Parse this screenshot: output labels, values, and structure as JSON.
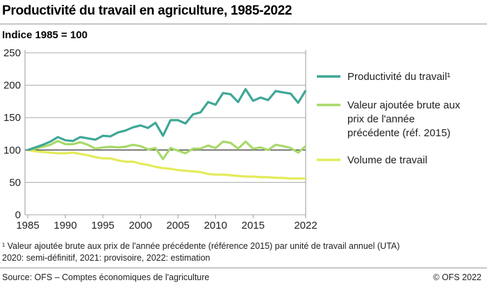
{
  "title": "Productivité du travail en agriculture, 1985-2022",
  "subtitle": "Indice 1985 = 100",
  "footnote1": "¹  Valeur ajoutée brute aux prix de l'année précédente (référence 2015) par unité de travail annuel (UTA)",
  "footnote2": "2020: semi-définitif, 2021: provisoire, 2022: estimation",
  "source": "Source: OFS – Comptes économiques de l'agriculture",
  "copyright": "© OFS 2022",
  "chart_data": {
    "type": "line",
    "title": "Productivité du travail en agriculture, 1985-2022",
    "ylabel": "Indice 1985 = 100",
    "ylim": [
      0,
      250
    ],
    "yticks": [
      0,
      50,
      100,
      150,
      200,
      250
    ],
    "xlim": [
      1985,
      2022
    ],
    "xticks": [
      1985,
      1990,
      1995,
      2000,
      2005,
      2010,
      2015,
      2022
    ],
    "grid": "horizontal",
    "legend_placement": "right",
    "x": [
      1985,
      1986,
      1987,
      1988,
      1989,
      1990,
      1991,
      1992,
      1993,
      1994,
      1995,
      1996,
      1997,
      1998,
      1999,
      2000,
      2001,
      2002,
      2003,
      2004,
      2005,
      2006,
      2007,
      2008,
      2009,
      2010,
      2011,
      2012,
      2013,
      2014,
      2015,
      2016,
      2017,
      2018,
      2019,
      2020,
      2021,
      2022
    ],
    "series": [
      {
        "name": "Productivité du travail¹",
        "legend_lines": [
          "Productivité du travail¹"
        ],
        "color": "#3fa796",
        "values": [
          100,
          104,
          108,
          113,
          120,
          115,
          114,
          120,
          118,
          116,
          122,
          121,
          127,
          130,
          135,
          138,
          134,
          142,
          122,
          146,
          146,
          141,
          155,
          158,
          174,
          170,
          188,
          186,
          174,
          194,
          176,
          181,
          177,
          191,
          189,
          187,
          173,
          192
        ]
      },
      {
        "name": "Valeur ajoutée brute aux prix de l'année précédente (réf. 2015)",
        "legend_lines": [
          "Valeur ajoutée brute aux",
          "prix de l'année",
          "précédente (réf. 2015)"
        ],
        "color": "#a8d96a",
        "values": [
          100,
          102,
          105,
          108,
          114,
          109,
          109,
          112,
          108,
          102,
          104,
          105,
          104,
          105,
          108,
          106,
          101,
          103,
          86,
          103,
          99,
          95,
          102,
          102,
          107,
          103,
          113,
          111,
          102,
          113,
          102,
          104,
          100,
          108,
          106,
          103,
          96,
          106
        ]
      },
      {
        "name": "Volume de travail",
        "legend_lines": [
          "Volume de travail"
        ],
        "color": "#e3eb5a",
        "values": [
          100,
          98,
          97,
          96,
          95,
          95,
          96,
          94,
          92,
          89,
          87,
          87,
          84,
          82,
          82,
          79,
          77,
          74,
          72,
          71,
          69,
          68,
          67,
          66,
          63,
          62,
          62,
          61,
          60,
          59,
          59,
          58,
          58,
          57,
          57,
          56,
          56,
          56
        ]
      }
    ]
  }
}
